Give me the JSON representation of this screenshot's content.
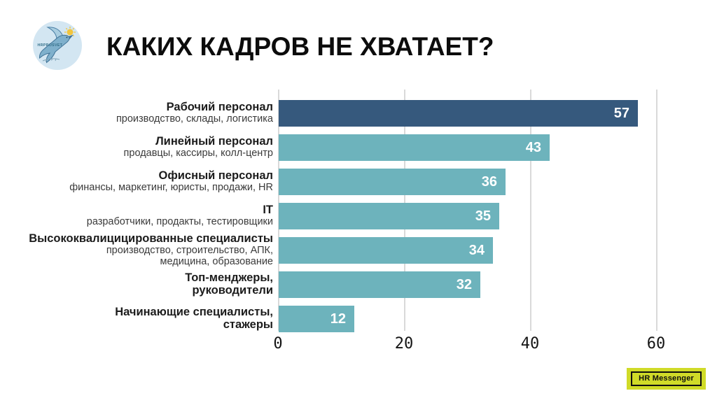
{
  "header": {
    "logo_text": "HRPROSVET",
    "title": "КАКИХ КАДРОВ НЕ ХВАТАЕТ?"
  },
  "chart_data": {
    "type": "bar",
    "orientation": "horizontal",
    "title": "КАКИХ КАДРОВ НЕ ХВАТАЕТ?",
    "xlabel": "",
    "ylabel": "",
    "xlim": [
      0,
      60
    ],
    "xticks": [
      0,
      20,
      40,
      60
    ],
    "grid": "vertical-gridlines",
    "legend": "none",
    "categories": [
      "Рабочий персонал",
      "Линейный персонал",
      "Офисный персонал",
      "IT",
      "Высококвалицицированные специалисты",
      "Топ-менджеры, руководители",
      "Начинающие специалисты, стажеры"
    ],
    "values": [
      57,
      43,
      36,
      35,
      34,
      32,
      12
    ],
    "colors": {
      "highlight": "#36597d",
      "default": "#6db3bc",
      "value_label": "#ffffff",
      "gridline": "#d9d9d9"
    },
    "rows": [
      {
        "label": "Рабочий персонал",
        "sublabel": "производство, склады, логистика",
        "value": 57,
        "color": "#36597d"
      },
      {
        "label": "Линейный персонал",
        "sublabel": "продавцы, кассиры, колл-центр",
        "value": 43,
        "color": "#6db3bc"
      },
      {
        "label": "Офисный персонал",
        "sublabel": "финансы, маркетинг, юристы, продажи, HR",
        "value": 36,
        "color": "#6db3bc"
      },
      {
        "label": "IT",
        "sublabel": "разработчики, продакты, тестировщики",
        "value": 35,
        "color": "#6db3bc"
      },
      {
        "label": "Высококвалицицированные специалисты",
        "sublabel": "производство, строительство, АПК,\nмедицина, образование",
        "value": 34,
        "color": "#6db3bc"
      },
      {
        "label": "Топ-менджеры,\nруководители",
        "sublabel": "",
        "value": 32,
        "color": "#6db3bc"
      },
      {
        "label": "Начинающие специалисты,\nстажеры",
        "sublabel": "",
        "value": 12,
        "color": "#6db3bc"
      }
    ]
  },
  "footer": {
    "badge_label": "HR Messenger",
    "badge_color": "#d0db28"
  }
}
